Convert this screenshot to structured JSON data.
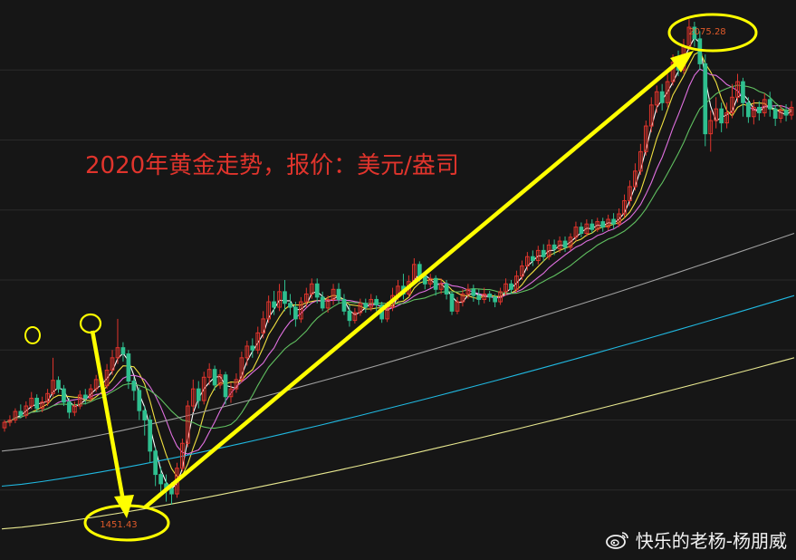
{
  "title": "2020年黄金走势，报价：美元/盎司",
  "watermark": {
    "text": "快乐的老杨-杨朋威",
    "icon": "weibo-icon"
  },
  "colors": {
    "background": "#161616",
    "grid": "#2a2a2a",
    "up": "#e0342c",
    "down": "#2fbf8f",
    "annotation": "#ffff00",
    "label_text": "#e05a2a",
    "ma": [
      "#ffffff",
      "#f0e040",
      "#e070e0",
      "#60c060",
      "#a0a0a0",
      "#20b8e0",
      "#e8e890"
    ]
  },
  "chart_data": {
    "type": "candlestick",
    "title": "2020年黄金走势，报价：美元/盎司",
    "xlabel": "",
    "ylabel": "",
    "unit": "美元/盎司",
    "ylim": [
      1380,
      2100
    ],
    "grid": true,
    "annotations": [
      {
        "label": "1451.43",
        "kind": "low"
      },
      {
        "label": "2075.28",
        "kind": "high"
      }
    ],
    "candles": [
      [
        1550,
        1557,
        1545,
        1560
      ],
      [
        1557,
        1560,
        1552,
        1566
      ],
      [
        1560,
        1571,
        1556,
        1575
      ],
      [
        1571,
        1566,
        1562,
        1580
      ],
      [
        1566,
        1578,
        1562,
        1584
      ],
      [
        1578,
        1588,
        1574,
        1596
      ],
      [
        1588,
        1575,
        1570,
        1593
      ],
      [
        1575,
        1583,
        1570,
        1590
      ],
      [
        1583,
        1594,
        1578,
        1600
      ],
      [
        1594,
        1611,
        1590,
        1640
      ],
      [
        1611,
        1600,
        1595,
        1616
      ],
      [
        1600,
        1583,
        1578,
        1605
      ],
      [
        1583,
        1570,
        1562,
        1588
      ],
      [
        1570,
        1578,
        1565,
        1584
      ],
      [
        1578,
        1592,
        1574,
        1598
      ],
      [
        1592,
        1588,
        1580,
        1600
      ],
      [
        1588,
        1600,
        1584,
        1606
      ],
      [
        1600,
        1612,
        1596,
        1618
      ],
      [
        1612,
        1604,
        1598,
        1620
      ],
      [
        1604,
        1624,
        1600,
        1632
      ],
      [
        1624,
        1640,
        1618,
        1650
      ],
      [
        1640,
        1653,
        1632,
        1690
      ],
      [
        1653,
        1645,
        1635,
        1660
      ],
      [
        1645,
        1610,
        1600,
        1650
      ],
      [
        1610,
        1598,
        1585,
        1615
      ],
      [
        1598,
        1572,
        1560,
        1602
      ],
      [
        1572,
        1560,
        1540,
        1578
      ],
      [
        1560,
        1520,
        1505,
        1566
      ],
      [
        1520,
        1490,
        1475,
        1525
      ],
      [
        1490,
        1478,
        1468,
        1500
      ],
      [
        1478,
        1472,
        1455,
        1490
      ],
      [
        1472,
        1465,
        1451,
        1480
      ],
      [
        1465,
        1498,
        1460,
        1505
      ],
      [
        1498,
        1530,
        1494,
        1536
      ],
      [
        1530,
        1578,
        1525,
        1585
      ],
      [
        1578,
        1600,
        1570,
        1612
      ],
      [
        1600,
        1585,
        1575,
        1610
      ],
      [
        1585,
        1615,
        1580,
        1622
      ],
      [
        1615,
        1625,
        1605,
        1633
      ],
      [
        1625,
        1605,
        1598,
        1630
      ],
      [
        1605,
        1618,
        1600,
        1625
      ],
      [
        1618,
        1590,
        1580,
        1622
      ],
      [
        1590,
        1600,
        1582,
        1608
      ],
      [
        1600,
        1612,
        1595,
        1620
      ],
      [
        1612,
        1640,
        1608,
        1648
      ],
      [
        1640,
        1655,
        1630,
        1662
      ],
      [
        1655,
        1650,
        1640,
        1665
      ],
      [
        1650,
        1672,
        1645,
        1680
      ],
      [
        1672,
        1690,
        1665,
        1700
      ],
      [
        1690,
        1712,
        1685,
        1720
      ],
      [
        1712,
        1705,
        1695,
        1726
      ],
      [
        1705,
        1725,
        1700,
        1735
      ],
      [
        1725,
        1710,
        1700,
        1740
      ],
      [
        1710,
        1705,
        1695,
        1722
      ],
      [
        1705,
        1690,
        1680,
        1712
      ],
      [
        1690,
        1712,
        1685,
        1718
      ],
      [
        1712,
        1722,
        1705,
        1730
      ],
      [
        1722,
        1735,
        1716,
        1742
      ],
      [
        1735,
        1718,
        1710,
        1742
      ],
      [
        1718,
        1704,
        1700,
        1725
      ],
      [
        1704,
        1715,
        1698,
        1720
      ],
      [
        1715,
        1728,
        1708,
        1735
      ],
      [
        1728,
        1715,
        1710,
        1736
      ],
      [
        1715,
        1700,
        1695,
        1722
      ],
      [
        1700,
        1688,
        1680,
        1708
      ],
      [
        1688,
        1698,
        1684,
        1704
      ],
      [
        1698,
        1710,
        1694,
        1716
      ],
      [
        1710,
        1705,
        1698,
        1716
      ],
      [
        1705,
        1715,
        1700,
        1722
      ],
      [
        1715,
        1708,
        1700,
        1720
      ],
      [
        1708,
        1690,
        1685,
        1712
      ],
      [
        1690,
        1705,
        1686,
        1712
      ],
      [
        1705,
        1720,
        1700,
        1730
      ],
      [
        1720,
        1732,
        1714,
        1740
      ],
      [
        1732,
        1722,
        1715,
        1748
      ],
      [
        1722,
        1738,
        1718,
        1746
      ],
      [
        1738,
        1760,
        1735,
        1768
      ],
      [
        1760,
        1745,
        1738,
        1764
      ],
      [
        1745,
        1735,
        1728,
        1750
      ],
      [
        1735,
        1742,
        1730,
        1748
      ],
      [
        1742,
        1728,
        1720,
        1746
      ],
      [
        1728,
        1735,
        1722,
        1742
      ],
      [
        1735,
        1722,
        1715,
        1740
      ],
      [
        1722,
        1700,
        1695,
        1725
      ],
      [
        1700,
        1712,
        1696,
        1718
      ],
      [
        1712,
        1722,
        1706,
        1728
      ],
      [
        1722,
        1728,
        1716,
        1735
      ],
      [
        1728,
        1720,
        1712,
        1734
      ],
      [
        1720,
        1715,
        1708,
        1728
      ],
      [
        1715,
        1722,
        1710,
        1730
      ],
      [
        1722,
        1718,
        1712,
        1726
      ],
      [
        1718,
        1712,
        1705,
        1722
      ],
      [
        1712,
        1725,
        1708,
        1730
      ],
      [
        1725,
        1735,
        1720,
        1742
      ],
      [
        1735,
        1728,
        1722,
        1740
      ],
      [
        1728,
        1745,
        1724,
        1752
      ],
      [
        1745,
        1758,
        1740,
        1765
      ],
      [
        1758,
        1770,
        1752,
        1776
      ],
      [
        1770,
        1765,
        1758,
        1778
      ],
      [
        1765,
        1778,
        1760,
        1784
      ],
      [
        1778,
        1770,
        1764,
        1786
      ],
      [
        1770,
        1785,
        1766,
        1792
      ],
      [
        1785,
        1780,
        1772,
        1792
      ],
      [
        1780,
        1790,
        1775,
        1796
      ],
      [
        1790,
        1782,
        1776,
        1796
      ],
      [
        1782,
        1795,
        1778,
        1800
      ],
      [
        1795,
        1808,
        1790,
        1815
      ],
      [
        1808,
        1800,
        1795,
        1814
      ],
      [
        1800,
        1812,
        1796,
        1818
      ],
      [
        1812,
        1805,
        1800,
        1818
      ],
      [
        1805,
        1815,
        1802,
        1820
      ],
      [
        1815,
        1808,
        1802,
        1820
      ],
      [
        1808,
        1818,
        1804,
        1824
      ],
      [
        1818,
        1812,
        1806,
        1826
      ],
      [
        1812,
        1825,
        1808,
        1832
      ],
      [
        1825,
        1842,
        1820,
        1850
      ],
      [
        1842,
        1860,
        1835,
        1868
      ],
      [
        1860,
        1880,
        1855,
        1890
      ],
      [
        1880,
        1905,
        1875,
        1915
      ],
      [
        1905,
        1938,
        1900,
        1945
      ],
      [
        1938,
        1965,
        1930,
        1975
      ],
      [
        1965,
        1982,
        1955,
        1990
      ],
      [
        1982,
        1968,
        1958,
        1992
      ],
      [
        1968,
        1995,
        1962,
        2005
      ],
      [
        1995,
        2020,
        1990,
        2030
      ],
      [
        2020,
        2010,
        2002,
        2035
      ],
      [
        2010,
        2040,
        2005,
        2050
      ],
      [
        2040,
        2065,
        2035,
        2075.28
      ],
      [
        2065,
        2050,
        2040,
        2072
      ],
      [
        2050,
        2018,
        2010,
        2060
      ],
      [
        2018,
        1928,
        1912,
        2030
      ],
      [
        1928,
        1945,
        1905,
        1958
      ],
      [
        1945,
        1960,
        1935,
        1975
      ],
      [
        1960,
        1942,
        1930,
        1968
      ],
      [
        1942,
        1955,
        1935,
        1968
      ],
      [
        1955,
        1975,
        1948,
        1992
      ],
      [
        1975,
        1995,
        1968,
        2005
      ],
      [
        1995,
        1968,
        1950,
        2000
      ],
      [
        1968,
        1950,
        1942,
        1975
      ],
      [
        1950,
        1962,
        1940,
        1972
      ],
      [
        1962,
        1955,
        1945,
        1970
      ],
      [
        1955,
        1972,
        1950,
        1980
      ],
      [
        1972,
        1960,
        1950,
        1982
      ],
      [
        1960,
        1948,
        1938,
        1965
      ],
      [
        1948,
        1958,
        1942,
        1965
      ],
      [
        1958,
        1952,
        1944,
        1966
      ],
      [
        1952,
        1962,
        1946,
        1970
      ]
    ]
  }
}
